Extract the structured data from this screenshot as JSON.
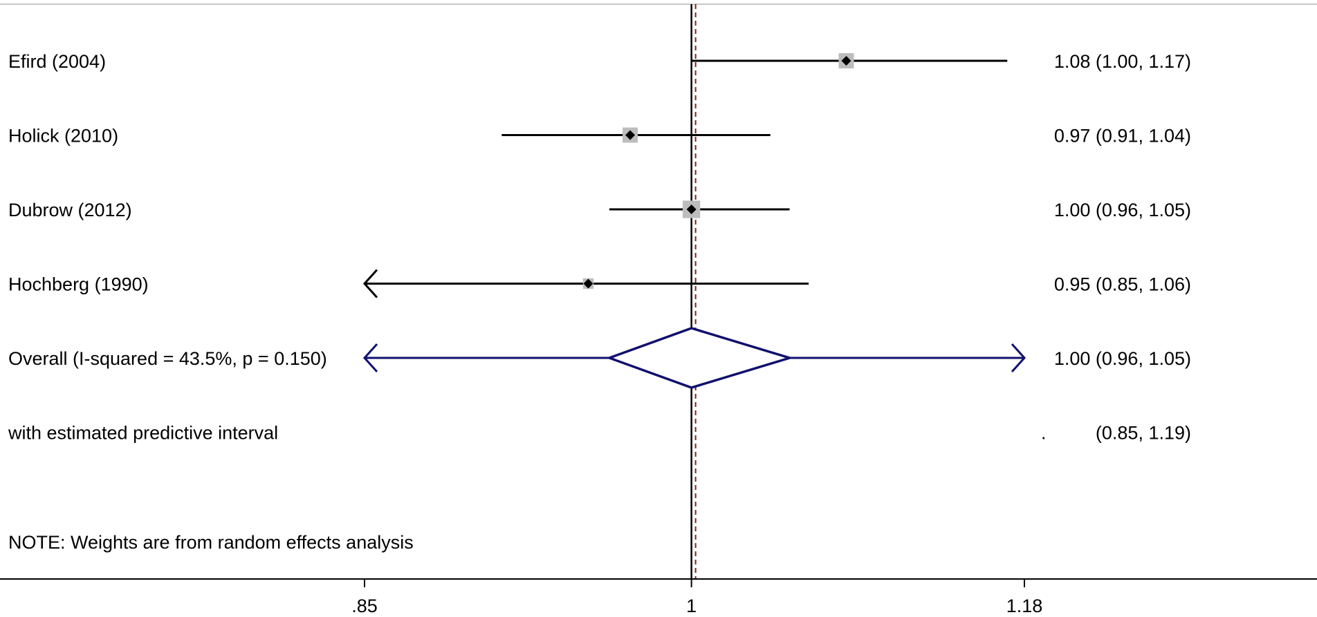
{
  "chart_data": {
    "type": "forest",
    "scale": "log",
    "xlim": [
      0.85,
      1.18
    ],
    "xticks": [
      0.85,
      1,
      1.18
    ],
    "xtick_labels": [
      ".85",
      "1",
      "1.18"
    ],
    "null_line": 1,
    "pooled_line": 1.0,
    "colors": {
      "ci_line": "#000000",
      "weight_box": "#bdbdbd",
      "point": "#000000",
      "diamond": "#10106e",
      "pooled_line": "#8b1a1a"
    },
    "studies": [
      {
        "label": "Efird (2004)",
        "es": 1.08,
        "lci": 1.0,
        "uci": 1.17,
        "text": "1.08 (1.00, 1.17)",
        "box": 1.0
      },
      {
        "label": "Holick (2010)",
        "es": 0.97,
        "lci": 0.91,
        "uci": 1.04,
        "text": "0.97 (0.91, 1.04)",
        "box": 1.0
      },
      {
        "label": "Dubrow (2012)",
        "es": 1.0,
        "lci": 0.96,
        "uci": 1.05,
        "text": "1.00 (0.96, 1.05)",
        "box": 1.15
      },
      {
        "label": "Hochberg (1990)",
        "es": 0.95,
        "lci": 0.85,
        "uci": 1.06,
        "text": "0.95 (0.85, 1.06)",
        "box": 0.7
      }
    ],
    "overall": {
      "label": "Overall  (I-squared = 43.5%, p = 0.150)",
      "es": 1.0,
      "lci": 0.96,
      "uci": 1.05,
      "text": "1.00 (0.96, 1.05)"
    },
    "prediction": {
      "label": "with estimated predictive interval",
      "lci": 0.85,
      "uci": 1.19,
      "dot": ".",
      "text": "(0.85, 1.19)"
    },
    "note": "NOTE: Weights are from random effects analysis"
  }
}
